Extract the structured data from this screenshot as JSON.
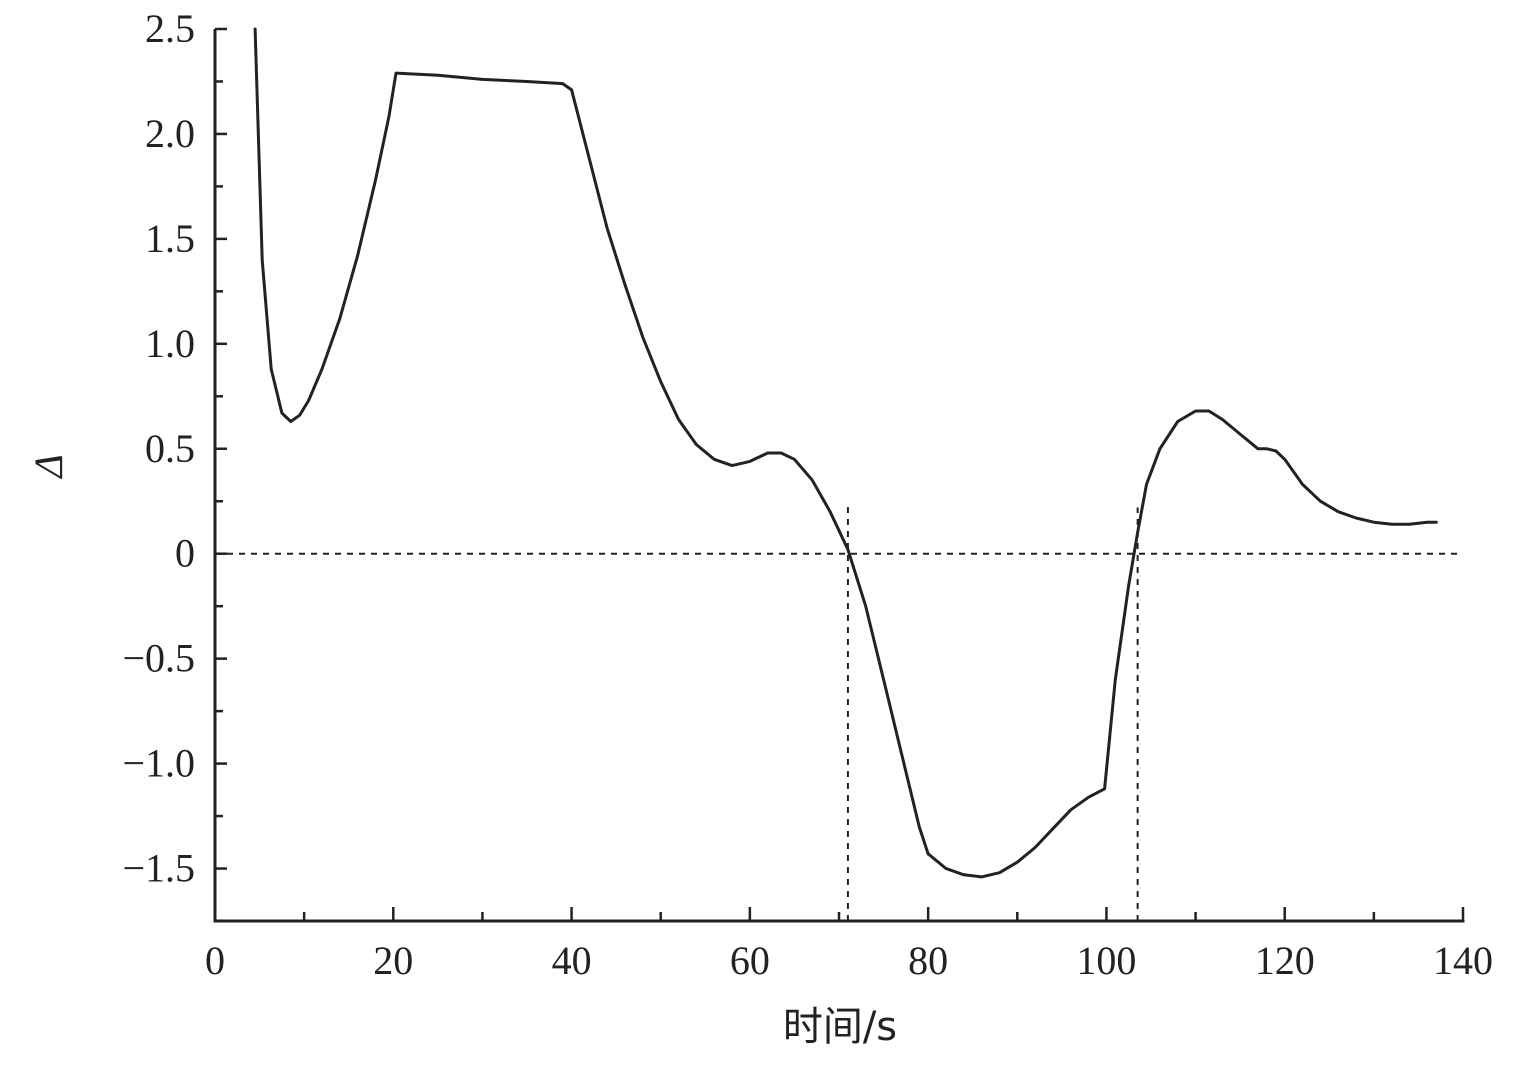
{
  "chart_data": {
    "type": "line",
    "xlabel": "时间/s",
    "ylabel": "Δ",
    "xlim": [
      0,
      140
    ],
    "ylim": [
      -1.75,
      2.5
    ],
    "x_ticks": [
      {
        "value": 0,
        "label": "0"
      },
      {
        "value": 20,
        "label": "20"
      },
      {
        "value": 40,
        "label": "40"
      },
      {
        "value": 60,
        "label": "60"
      },
      {
        "value": 80,
        "label": "80"
      },
      {
        "value": 100,
        "label": "100"
      },
      {
        "value": 120,
        "label": "120"
      },
      {
        "value": 140,
        "label": "140"
      }
    ],
    "y_ticks": [
      {
        "value": 2.5,
        "label": "2.5"
      },
      {
        "value": 2.0,
        "label": "2.0"
      },
      {
        "value": 1.5,
        "label": "1.5"
      },
      {
        "value": 1.0,
        "label": "1.0"
      },
      {
        "value": 0.5,
        "label": "0.5"
      },
      {
        "value": 0,
        "label": "0"
      },
      {
        "value": -0.5,
        "label": "−0.5"
      },
      {
        "value": -1.0,
        "label": "−1.0"
      },
      {
        "value": -1.5,
        "label": "−1.5"
      }
    ],
    "x_minor_step": 10,
    "y_minor_step": 0.25,
    "grid": false,
    "line_color": "#222222",
    "series": [
      {
        "x": [
          4.5,
          5.3,
          6.3,
          7.5,
          8.5,
          9.5,
          10.5,
          12,
          14,
          16,
          18,
          19.5,
          20.3,
          25,
          30,
          35,
          39,
          40,
          42,
          44,
          46,
          48,
          50,
          52,
          54,
          56,
          58,
          60,
          62,
          63.5,
          65,
          67,
          69,
          71,
          73,
          75,
          77,
          79,
          80,
          82,
          84,
          86,
          88,
          90,
          92,
          94,
          96,
          98,
          99.8,
          101,
          102.5,
          103.5,
          104.5,
          106,
          108,
          110,
          111.5,
          113,
          115,
          117,
          118,
          119,
          120,
          122,
          124,
          126,
          128,
          130,
          132,
          134,
          136,
          137
        ],
        "y": [
          2.5,
          1.4,
          0.88,
          0.67,
          0.63,
          0.66,
          0.73,
          0.88,
          1.12,
          1.42,
          1.78,
          2.08,
          2.29,
          2.28,
          2.26,
          2.25,
          2.24,
          2.21,
          1.88,
          1.55,
          1.28,
          1.03,
          0.82,
          0.64,
          0.52,
          0.45,
          0.42,
          0.44,
          0.48,
          0.48,
          0.45,
          0.35,
          0.2,
          0.02,
          -0.25,
          -0.6,
          -0.95,
          -1.3,
          -1.43,
          -1.5,
          -1.53,
          -1.54,
          -1.52,
          -1.47,
          -1.4,
          -1.31,
          -1.22,
          -1.16,
          -1.12,
          -0.6,
          -0.15,
          0.1,
          0.33,
          0.5,
          0.63,
          0.68,
          0.68,
          0.64,
          0.57,
          0.5,
          0.5,
          0.49,
          0.45,
          0.33,
          0.25,
          0.2,
          0.17,
          0.15,
          0.14,
          0.14,
          0.15,
          0.15
        ]
      }
    ],
    "reference_lines": [
      {
        "orientation": "horizontal",
        "y": 0,
        "style": "dashed"
      },
      {
        "orientation": "vertical",
        "x": 71,
        "style": "dashed",
        "y_range": [
          -1.75,
          0.25
        ]
      },
      {
        "orientation": "vertical",
        "x": 103.5,
        "style": "dashed",
        "y_range": [
          -1.75,
          0.22
        ]
      }
    ]
  }
}
